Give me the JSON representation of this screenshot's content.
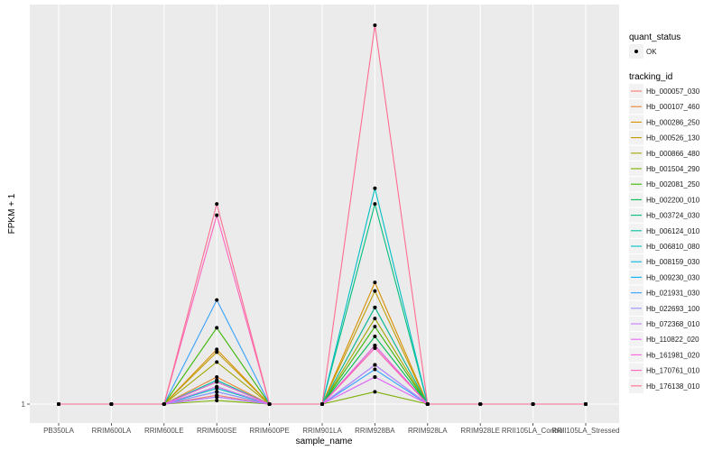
{
  "chart_data": {
    "type": "line",
    "xlabel": "sample_name",
    "ylabel": "FPKM + 1",
    "y_scale": "log10",
    "ylim": [
      1,
      8
    ],
    "y_tick_values": [
      1
    ],
    "y_tick_labels": [
      "1"
    ],
    "grid": true,
    "legend_position": "right",
    "point_color": "#000000",
    "categories": [
      "PB350LA",
      "RRIM600LA",
      "RRIM600LE",
      "RRIM600SE",
      "RRIM600PE",
      "RRIM901LA",
      "RRIM928BA",
      "RRIM928LA",
      "RRIM928LE",
      "RRII105LA_Control",
      "RRII105LA_Stressed"
    ],
    "series": [
      {
        "name": "Hb_000057_030",
        "color": "#F8766D",
        "values": [
          1,
          1,
          1,
          1.05,
          1,
          1,
          1.36,
          1,
          1,
          1,
          1
        ]
      },
      {
        "name": "Hb_000107_460",
        "color": "#EA8331",
        "values": [
          1,
          1,
          1,
          1.16,
          1,
          1,
          1.7,
          1,
          1,
          1,
          1
        ]
      },
      {
        "name": "Hb_000286_250",
        "color": "#D89000",
        "values": [
          1,
          1,
          1,
          1.35,
          1,
          1,
          1.95,
          1,
          1,
          1,
          1
        ]
      },
      {
        "name": "Hb_000526_130",
        "color": "#C09B00",
        "values": [
          1,
          1,
          1,
          1.33,
          1,
          1,
          1.86,
          1,
          1,
          1,
          1
        ]
      },
      {
        "name": "Hb_000866_480",
        "color": "#A3A500",
        "values": [
          1,
          1,
          1,
          1.26,
          1,
          1,
          1.6,
          1,
          1,
          1,
          1
        ]
      },
      {
        "name": "Hb_001504_290",
        "color": "#7CAE00",
        "values": [
          1,
          1,
          1,
          1.02,
          1,
          1,
          1.07,
          1,
          1,
          1,
          1
        ]
      },
      {
        "name": "Hb_002081_250",
        "color": "#39B600",
        "values": [
          1,
          1,
          1,
          1.52,
          1,
          1,
          1.53,
          1,
          1,
          1,
          1
        ]
      },
      {
        "name": "Hb_002200_010",
        "color": "#00BB4E",
        "values": [
          1,
          1,
          1,
          1.13,
          1,
          1,
          1.45,
          1,
          1,
          1,
          1
        ]
      },
      {
        "name": "Hb_003724_030",
        "color": "#00BF7D",
        "values": [
          1,
          1,
          1,
          1.1,
          1,
          1,
          3.0,
          1,
          1,
          1,
          1
        ]
      },
      {
        "name": "Hb_006124_010",
        "color": "#00C1A3",
        "values": [
          1,
          1,
          1,
          1.14,
          1,
          1,
          1.7,
          1,
          1,
          1,
          1
        ]
      },
      {
        "name": "Hb_006810_080",
        "color": "#00BFC4",
        "values": [
          1,
          1,
          1,
          1.09,
          1,
          1,
          3.27,
          1,
          1,
          1,
          1
        ]
      },
      {
        "name": "Hb_008159_030",
        "color": "#00BAE0",
        "values": [
          1,
          1,
          1,
          1.07,
          1,
          1,
          1.38,
          1,
          1,
          1,
          1
        ]
      },
      {
        "name": "Hb_009230_030",
        "color": "#00B0F6",
        "values": [
          1,
          1,
          1,
          1.04,
          1,
          1,
          1.24,
          1,
          1,
          1,
          1
        ]
      },
      {
        "name": "Hb_021931_030",
        "color": "#35A2FF",
        "values": [
          1,
          1,
          1,
          1.77,
          1,
          1,
          1.21,
          1,
          1,
          1,
          1
        ]
      },
      {
        "name": "Hb_022693_100",
        "color": "#9590FF",
        "values": [
          1,
          1,
          1,
          1.07,
          1,
          1,
          1.16,
          1,
          1,
          1,
          1
        ]
      },
      {
        "name": "Hb_072368_010",
        "color": "#C77CFF",
        "values": [
          1,
          1,
          1,
          1.04,
          1,
          1,
          1.24,
          1,
          1,
          1,
          1
        ]
      },
      {
        "name": "Hb_110822_020",
        "color": "#E76BF3",
        "values": [
          1,
          1,
          1,
          1.1,
          1,
          1,
          1.16,
          1,
          1,
          1,
          1
        ]
      },
      {
        "name": "Hb_161981_020",
        "color": "#FA62DB",
        "values": [
          1,
          1,
          1,
          1.13,
          1,
          1,
          1.38,
          1,
          1,
          1,
          1
        ]
      },
      {
        "name": "Hb_170761_010",
        "color": "#FF62BC",
        "values": [
          1,
          1,
          1,
          2.82,
          1,
          1,
          1.36,
          1,
          1,
          1,
          1
        ]
      },
      {
        "name": "Hb_176138_010",
        "color": "#FF6C91",
        "values": [
          1,
          1,
          1,
          3.0,
          1,
          1,
          8.0,
          1,
          1,
          1,
          1
        ]
      }
    ]
  },
  "legend": {
    "quant_status_title": "quant_status",
    "quant_status_items": [
      "OK"
    ],
    "tracking_title": "tracking_id"
  },
  "colors": {
    "panel_background": "#EBEBEB",
    "grid_line": "#FFFFFF",
    "legend_key_background": "#F2F2F2",
    "tick_text": "#4D4D4D"
  }
}
